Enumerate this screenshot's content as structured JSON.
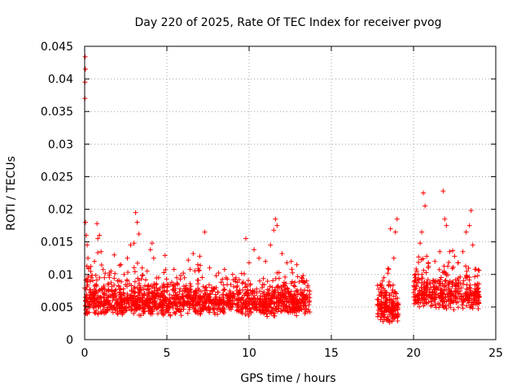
{
  "chart_data": {
    "type": "scatter",
    "title": "Day 220 of 2025, Rate Of TEC Index for receiver pvog",
    "xlabel": "GPS time / hours",
    "ylabel": "ROTI / TECUs",
    "xlim": [
      0,
      25
    ],
    "ylim": [
      0,
      0.045
    ],
    "x_ticks": [
      0,
      5,
      10,
      15,
      20,
      25
    ],
    "x_tick_labels": [
      "0",
      "5",
      "10",
      "15",
      "20",
      "25"
    ],
    "y_ticks": [
      0,
      0.005,
      0.01,
      0.015,
      0.02,
      0.025,
      0.03,
      0.035,
      0.04,
      0.045
    ],
    "y_tick_labels": [
      "0",
      "0.005",
      "0.01",
      "0.015",
      "0.02",
      "0.025",
      "0.03",
      "0.035",
      "0.04",
      "0.045"
    ],
    "grid": true,
    "marker": "+",
    "marker_color": "#ff0000",
    "series": [
      {
        "name": "ROTI",
        "points": [
          [
            0.03,
            0.0434
          ],
          [
            0.05,
            0.0415
          ],
          [
            0.02,
            0.0395
          ],
          [
            0.02,
            0.037
          ],
          [
            0.05,
            0.018
          ],
          [
            0.1,
            0.016
          ],
          [
            0.15,
            0.0145
          ],
          [
            0.2,
            0.0125
          ],
          [
            0.25,
            0.011
          ],
          [
            0.4,
            0.0095
          ],
          [
            0.6,
            0.012
          ],
          [
            0.75,
            0.0178
          ],
          [
            0.8,
            0.0155
          ],
          [
            0.9,
            0.016
          ],
          [
            1.0,
            0.0135
          ],
          [
            1.2,
            0.0095
          ],
          [
            1.4,
            0.0085
          ],
          [
            1.6,
            0.0105
          ],
          [
            1.8,
            0.013
          ],
          [
            2.0,
            0.009
          ],
          [
            2.2,
            0.0115
          ],
          [
            2.4,
            0.01
          ],
          [
            2.6,
            0.0125
          ],
          [
            2.8,
            0.0145
          ],
          [
            3.0,
            0.0148
          ],
          [
            3.1,
            0.0195
          ],
          [
            3.2,
            0.018
          ],
          [
            3.3,
            0.0162
          ],
          [
            3.5,
            0.011
          ],
          [
            3.8,
            0.0105
          ],
          [
            4.0,
            0.0138
          ],
          [
            4.1,
            0.0148
          ],
          [
            4.2,
            0.0125
          ],
          [
            4.5,
            0.0095
          ],
          [
            4.8,
            0.0085
          ],
          [
            5.0,
            0.0075
          ],
          [
            5.3,
            0.0088
          ],
          [
            5.6,
            0.0095
          ],
          [
            6.0,
            0.0102
          ],
          [
            6.3,
            0.0122
          ],
          [
            6.6,
            0.0132
          ],
          [
            7.0,
            0.0128
          ],
          [
            7.3,
            0.0165
          ],
          [
            7.6,
            0.011
          ],
          [
            8.0,
            0.0098
          ],
          [
            8.3,
            0.0088
          ],
          [
            8.6,
            0.0095
          ],
          [
            9.0,
            0.01
          ],
          [
            9.4,
            0.0092
          ],
          [
            9.8,
            0.0155
          ],
          [
            10.0,
            0.0118
          ],
          [
            10.3,
            0.0138
          ],
          [
            10.6,
            0.0125
          ],
          [
            11.0,
            0.012
          ],
          [
            11.3,
            0.0145
          ],
          [
            11.5,
            0.0168
          ],
          [
            11.6,
            0.0185
          ],
          [
            11.7,
            0.0175
          ],
          [
            12.0,
            0.0132
          ],
          [
            12.3,
            0.0118
          ],
          [
            12.6,
            0.0108
          ],
          [
            12.9,
            0.0115
          ],
          [
            13.2,
            0.0095
          ],
          [
            13.5,
            0.009
          ],
          [
            18.2,
            0.0095
          ],
          [
            18.5,
            0.0108
          ],
          [
            18.6,
            0.017
          ],
          [
            18.8,
            0.0125
          ],
          [
            18.9,
            0.0165
          ],
          [
            19.0,
            0.0185
          ],
          [
            20.1,
            0.0095
          ],
          [
            20.2,
            0.0105
          ],
          [
            20.4,
            0.0148
          ],
          [
            20.5,
            0.0165
          ],
          [
            20.6,
            0.0225
          ],
          [
            20.7,
            0.0205
          ],
          [
            20.8,
            0.0128
          ],
          [
            20.9,
            0.0118
          ],
          [
            21.3,
            0.012
          ],
          [
            21.6,
            0.0135
          ],
          [
            21.8,
            0.0228
          ],
          [
            21.9,
            0.0185
          ],
          [
            22.0,
            0.0175
          ],
          [
            22.2,
            0.0135
          ],
          [
            22.5,
            0.0128
          ],
          [
            22.7,
            0.0118
          ],
          [
            23.0,
            0.0135
          ],
          [
            23.2,
            0.0165
          ],
          [
            23.4,
            0.0175
          ],
          [
            23.5,
            0.0198
          ],
          [
            23.6,
            0.0145
          ],
          [
            23.8,
            0.0108
          ],
          [
            23.9,
            0.0098
          ]
        ]
      }
    ]
  }
}
